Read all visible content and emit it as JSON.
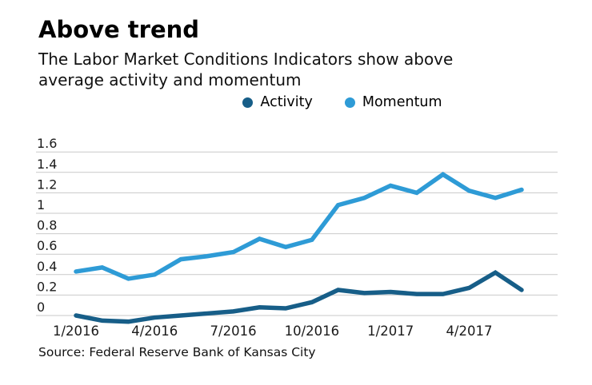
{
  "header": {
    "title": "Above trend",
    "subtitle": "The Labor Market Conditions Indicators show above average activity and momentum"
  },
  "legend": [
    {
      "label": "Activity",
      "color": "#175e88"
    },
    {
      "label": "Momentum",
      "color": "#2e9bd6"
    }
  ],
  "source": "Source: Federal Reserve Bank of Kansas City",
  "colors": {
    "gridline": "#c9c9c9",
    "axis_text": "#1a1a1a"
  },
  "chart_data": {
    "type": "line",
    "x": [
      "1/2016",
      "2/2016",
      "3/2016",
      "4/2016",
      "5/2016",
      "6/2016",
      "7/2016",
      "8/2016",
      "9/2016",
      "10/2016",
      "11/2016",
      "12/2016",
      "1/2017",
      "2/2017",
      "3/2017",
      "4/2017",
      "5/2017",
      "6/2017"
    ],
    "series": [
      {
        "name": "Activity",
        "color": "#175e88",
        "values": [
          0.0,
          -0.05,
          -0.06,
          -0.02,
          0.0,
          0.02,
          0.04,
          0.08,
          0.07,
          0.13,
          0.25,
          0.22,
          0.23,
          0.21,
          0.21,
          0.27,
          0.42,
          0.25
        ]
      },
      {
        "name": "Momentum",
        "color": "#2e9bd6",
        "values": [
          0.43,
          0.47,
          0.36,
          0.4,
          0.55,
          0.58,
          0.62,
          0.75,
          0.67,
          0.74,
          1.08,
          1.15,
          1.27,
          1.2,
          1.38,
          1.22,
          1.15,
          1.23
        ]
      }
    ],
    "title": "Above trend",
    "xlabel": "",
    "ylabel": "",
    "ylim": [
      -0.15,
      1.6
    ],
    "grid": true,
    "legend_position": "top-center",
    "yticks": [
      {
        "v": 0.0,
        "label": "0"
      },
      {
        "v": 0.2,
        "label": "0.2"
      },
      {
        "v": 0.4,
        "label": "0.4"
      },
      {
        "v": 0.6,
        "label": "0.6"
      },
      {
        "v": 0.8,
        "label": "0.8"
      },
      {
        "v": 1.0,
        "label": "1"
      },
      {
        "v": 1.2,
        "label": "1.2"
      },
      {
        "v": 1.4,
        "label": "1.4"
      },
      {
        "v": 1.6,
        "label": "1.6"
      }
    ],
    "xticks": [
      {
        "label": "1/2016",
        "i": 0
      },
      {
        "label": "4/2016",
        "i": 3
      },
      {
        "label": "7/2016",
        "i": 6
      },
      {
        "label": "10/2016",
        "i": 9
      },
      {
        "label": "1/2017",
        "i": 12
      },
      {
        "label": "4/2017",
        "i": 15
      }
    ]
  }
}
